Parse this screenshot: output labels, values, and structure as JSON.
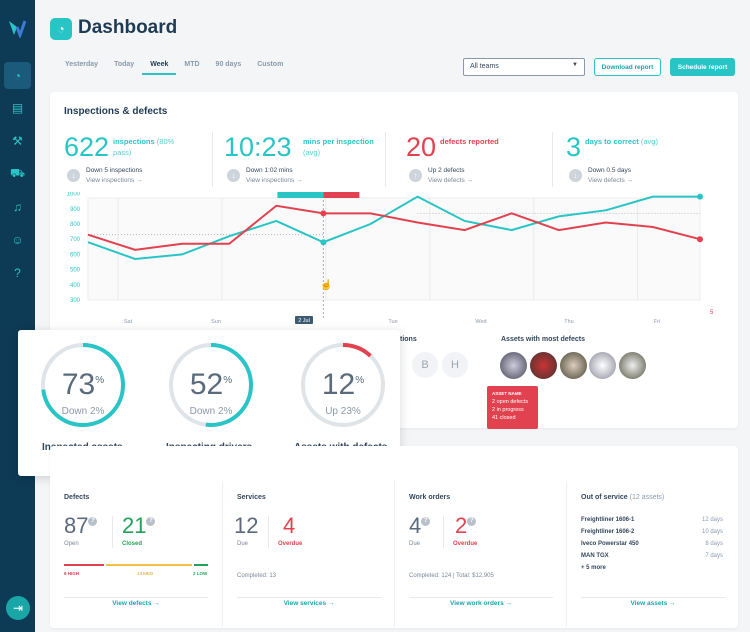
{
  "header": {
    "title": "Dashboard"
  },
  "tabs": [
    "Yesterday",
    "Today",
    "Week",
    "MTD",
    "90 days",
    "Custom"
  ],
  "active_tab": "Week",
  "team_select": {
    "value": "All teams"
  },
  "buttons": {
    "download": "Download report",
    "schedule": "Schedule report"
  },
  "sidebar": {
    "icons": [
      "dashboard-icon",
      "clipboard-check-icon",
      "wrench-icon",
      "truck-icon",
      "bell-icon",
      "user-icon",
      "help-icon"
    ],
    "collapse": "collapse-icon"
  },
  "inspections": {
    "title": "Inspections & defects",
    "kpis": [
      {
        "value": "622",
        "label": "inspections",
        "sub": "(80% pass)",
        "trend": "down",
        "delta": "Down 5 inspections",
        "link": "View inspections →",
        "color": "#29c5c6"
      },
      {
        "value": "10:23",
        "label": "mins per inspection",
        "sub": "(avg)",
        "trend": "down",
        "delta": "Down 1:02 mins",
        "link": "View inspections →",
        "color": "#29c5c6"
      },
      {
        "value": "20",
        "label": "defects reported",
        "sub": "",
        "trend": "up",
        "delta": "Up 2 defects",
        "link": "View defects →",
        "color": "#e2424f"
      },
      {
        "value": "3",
        "label": "days to correct",
        "sub": "(avg)",
        "trend": "down",
        "delta": "Down 0.5 days",
        "link": "View defects →",
        "color": "#29c5c6"
      }
    ]
  },
  "chart_data": {
    "type": "line",
    "x_labels": [
      "Sat",
      "Sun",
      "2 Jul",
      "Tue",
      "Wed",
      "Thu",
      "Fri"
    ],
    "highlight_x": "2 Jul",
    "y_ticks": [
      300,
      400,
      500,
      600,
      700,
      800,
      900,
      1000
    ],
    "ylim": [
      300,
      1050
    ],
    "right_axis_tick": "5",
    "grid": true,
    "series": [
      {
        "color": "#29c5c6",
        "values": [
          680,
          570,
          600,
          720,
          820,
          680,
          800,
          980,
          820,
          760,
          850,
          890,
          980,
          980
        ]
      },
      {
        "color": "#e2424f",
        "values": [
          730,
          630,
          670,
          670,
          920,
          870,
          870,
          810,
          760,
          870,
          760,
          810,
          780,
          700
        ]
      }
    ]
  },
  "gauges": [
    {
      "value": "73",
      "unit": "%",
      "delta": "Down 2%",
      "label": "Inspected assets",
      "fraction": 0.73,
      "color": "#29c5c6"
    },
    {
      "value": "52",
      "unit": "%",
      "delta": "Down 2%",
      "label": "Inspecting drivers",
      "fraction": 0.52,
      "color": "#29c5c6"
    },
    {
      "value": "12",
      "unit": "%",
      "delta": "Up 23%",
      "label": "Assets with defects",
      "fraction": 0.12,
      "color": "#e2424f"
    }
  ],
  "partial_heading": "tions",
  "letters": [
    "B",
    "H"
  ],
  "assets": {
    "title": "Assets with most defects",
    "tooltip": {
      "name": "ASSET NAME",
      "lines": [
        "2 open defects",
        "2 in progress",
        "41 closed"
      ]
    }
  },
  "summary": {
    "defects": {
      "title": "Defects",
      "open": "87",
      "open_label": "Open",
      "closed": "21",
      "closed_label": "Closed",
      "high": "6 HIGH",
      "med": "13 MED",
      "low": "2 LOW",
      "link": "View defects →"
    },
    "services": {
      "title": "Services",
      "due": "12",
      "due_label": "Due",
      "overdue": "4",
      "overdue_label": "Overdue",
      "completed": "Completed:  13",
      "link": "View services →"
    },
    "work_orders": {
      "title": "Work orders",
      "due": "4",
      "due_label": "Due",
      "overdue": "2",
      "overdue_label": "Overdue",
      "completed": "Completed: 124  |  Total: $12,905",
      "link": "View work orders →"
    },
    "out_of_service": {
      "title": "Out of service",
      "count": "(12 assets)",
      "items": [
        {
          "name": "Freightliner 1606-1",
          "days": "12 days"
        },
        {
          "name": "Freightliner 1606-2",
          "days": "10 days"
        },
        {
          "name": "Iveco Powerstar 450",
          "days": "8 days"
        },
        {
          "name": "MAN TGX",
          "days": "7 days"
        }
      ],
      "more": "+ 5 more",
      "link": "View assets →"
    }
  }
}
